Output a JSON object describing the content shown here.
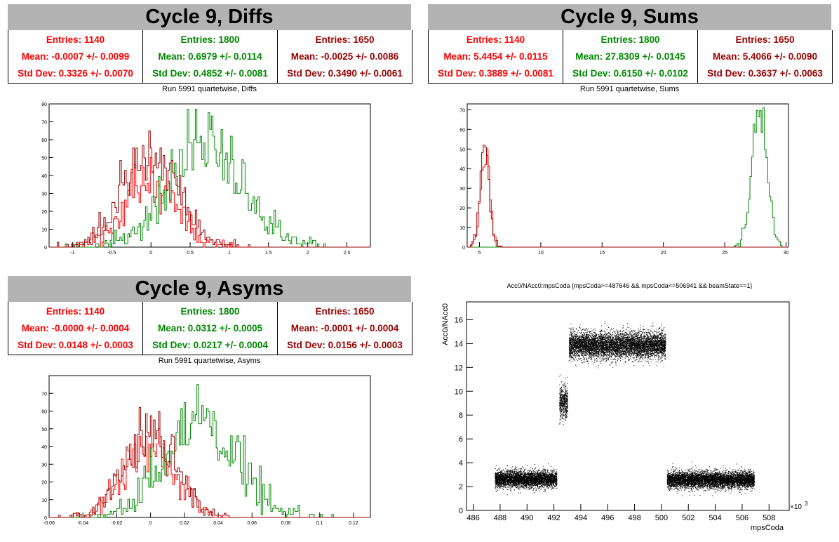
{
  "colors": {
    "red": "#ff0000",
    "green": "#008800",
    "darkred": "#990000",
    "black": "#000000"
  },
  "panels": {
    "diffs": {
      "title": "Cycle 9, Diffs",
      "hist_title": "Run 5991 quartetwise, Diffs",
      "stats": [
        {
          "entries": "Entries: 1140",
          "mean": "Mean: -0.0007 +/- 0.0099",
          "std": "Std Dev: 0.3326 +/- 0.0070"
        },
        {
          "entries": "Entries: 1800",
          "mean": "Mean: 0.6979 +/- 0.0114",
          "std": "Std Dev: 0.4852 +/- 0.0081"
        },
        {
          "entries": "Entries: 1650",
          "mean": "Mean: -0.0025 +/- 0.0086",
          "std": "Std Dev: 0.3490 +/- 0.0061"
        }
      ]
    },
    "sums": {
      "title": "Cycle 9, Sums",
      "hist_title": "Run 5991 quartetwise, Sums",
      "stats": [
        {
          "entries": "Entries: 1140",
          "mean": "Mean: 5.4454 +/- 0.0115",
          "std": "Std Dev: 0.3889 +/- 0.0081"
        },
        {
          "entries": "Entries: 1800",
          "mean": "Mean: 27.8309 +/- 0.0145",
          "std": "Std Dev: 0.6150 +/- 0.0102"
        },
        {
          "entries": "Entries: 1650",
          "mean": "Mean: 5.4066 +/- 0.0090",
          "std": "Std Dev: 0.3637 +/- 0.0063"
        }
      ]
    },
    "asyms": {
      "title": "Cycle 9, Asyms",
      "hist_title": "Run 5991 quartetwise, Asyms",
      "stats": [
        {
          "entries": "Entries: 1140",
          "mean": "Mean: -0.0000 +/- 0.0004",
          "std": "Std Dev: 0.0148 +/- 0.0003"
        },
        {
          "entries": "Entries: 1800",
          "mean": "Mean: 0.0312 +/- 0.0005",
          "std": "Std Dev: 0.0217 +/- 0.0004"
        },
        {
          "entries": "Entries: 1650",
          "mean": "Mean: -0.0001 +/- 0.0004",
          "std": "Std Dev: 0.0156 +/- 0.0003"
        }
      ]
    },
    "scatter": {
      "title": "Acc0/NAcc0:mpsCoda {mpsCoda>=487646 && mpsCoda<=506941 && beamState==1}",
      "xlabel": "mpsCoda",
      "ylabel": "Acc0/NAcc0",
      "exponent": "×10",
      "exponent_power": "3"
    }
  },
  "chart_data": [
    {
      "type": "histogram",
      "id": "diffs",
      "xlim": [
        -1.3,
        2.8
      ],
      "ylim": [
        0,
        80
      ],
      "xticks": [
        "-1",
        "-0.5",
        "0",
        "0.5",
        "1",
        "1.5",
        "2",
        "2.5"
      ],
      "xtick_values": [
        -1,
        -0.5,
        0,
        0.5,
        1,
        1.5,
        2,
        2.5
      ],
      "yticks": [
        0,
        10,
        20,
        30,
        40,
        50,
        60,
        70,
        80
      ],
      "series": [
        {
          "color": "red",
          "mean": -0.0007,
          "std": 0.3326,
          "entries": 1140,
          "peak": 50
        },
        {
          "color": "green",
          "mean": 0.6979,
          "std": 0.4852,
          "entries": 1800,
          "peak": 77
        },
        {
          "color": "darkred",
          "mean": -0.0025,
          "std": 0.349,
          "entries": 1650,
          "peak": 65
        }
      ]
    },
    {
      "type": "histogram",
      "id": "sums",
      "xlim": [
        4,
        30.2
      ],
      "ylim": [
        0,
        73
      ],
      "xticks": [
        "5",
        "10",
        "15",
        "20",
        "25",
        "30"
      ],
      "xtick_values": [
        5,
        10,
        15,
        20,
        25,
        30
      ],
      "yticks": [
        0,
        10,
        20,
        30,
        40,
        50,
        60,
        70
      ],
      "series": [
        {
          "color": "red",
          "mean": 5.4454,
          "std": 0.3889,
          "entries": 1140,
          "peak": 50
        },
        {
          "color": "green",
          "mean": 27.8309,
          "std": 0.615,
          "entries": 1800,
          "peak": 71
        },
        {
          "color": "darkred",
          "mean": 5.4066,
          "std": 0.3637,
          "entries": 1650,
          "peak": 52
        }
      ]
    },
    {
      "type": "histogram",
      "id": "asyms",
      "xlim": [
        -0.06,
        0.13
      ],
      "ylim": [
        0,
        80
      ],
      "xticks": [
        "-0.06",
        "-0.04",
        "-0.02",
        "0",
        "0.02",
        "0.04",
        "0.06",
        "0.08",
        "0.1",
        "0.12"
      ],
      "xtick_values": [
        -0.06,
        -0.04,
        -0.02,
        0,
        0.02,
        0.04,
        0.06,
        0.08,
        0.1,
        0.12
      ],
      "yticks": [
        0,
        10,
        20,
        30,
        40,
        50,
        60,
        70
      ],
      "series": [
        {
          "color": "red",
          "mean": 0.0,
          "std": 0.0148,
          "entries": 1140,
          "peak": 50
        },
        {
          "color": "green",
          "mean": 0.0312,
          "std": 0.0217,
          "entries": 1800,
          "peak": 75
        },
        {
          "color": "darkred",
          "mean": -0.0001,
          "std": 0.0156,
          "entries": 1650,
          "peak": 62
        }
      ]
    },
    {
      "type": "scatter",
      "id": "scatter",
      "xlim": [
        485.5,
        509.5
      ],
      "ylim": [
        0,
        17.5
      ],
      "xticks": [
        "486",
        "488",
        "490",
        "492",
        "494",
        "496",
        "498",
        "500",
        "502",
        "504",
        "506",
        "508"
      ],
      "xtick_values": [
        486,
        488,
        490,
        492,
        494,
        496,
        498,
        500,
        502,
        504,
        506,
        508
      ],
      "yticks": [
        "0",
        "2",
        "4",
        "6",
        "8",
        "10",
        "12",
        "14",
        "16"
      ],
      "ytick_values": [
        0,
        2,
        4,
        6,
        8,
        10,
        12,
        14,
        16
      ],
      "clusters": [
        {
          "x": [
            487.6,
            492.2
          ],
          "y_center": 2.65,
          "y_spread": 0.35
        },
        {
          "x": [
            492.4,
            493.0
          ],
          "y_center": 9.1,
          "y_spread": 0.7
        },
        {
          "x": [
            493.1,
            500.3
          ],
          "y_center": 13.9,
          "y_spread": 0.55
        },
        {
          "x": [
            500.4,
            506.9
          ],
          "y_center": 2.6,
          "y_spread": 0.35
        }
      ]
    }
  ]
}
